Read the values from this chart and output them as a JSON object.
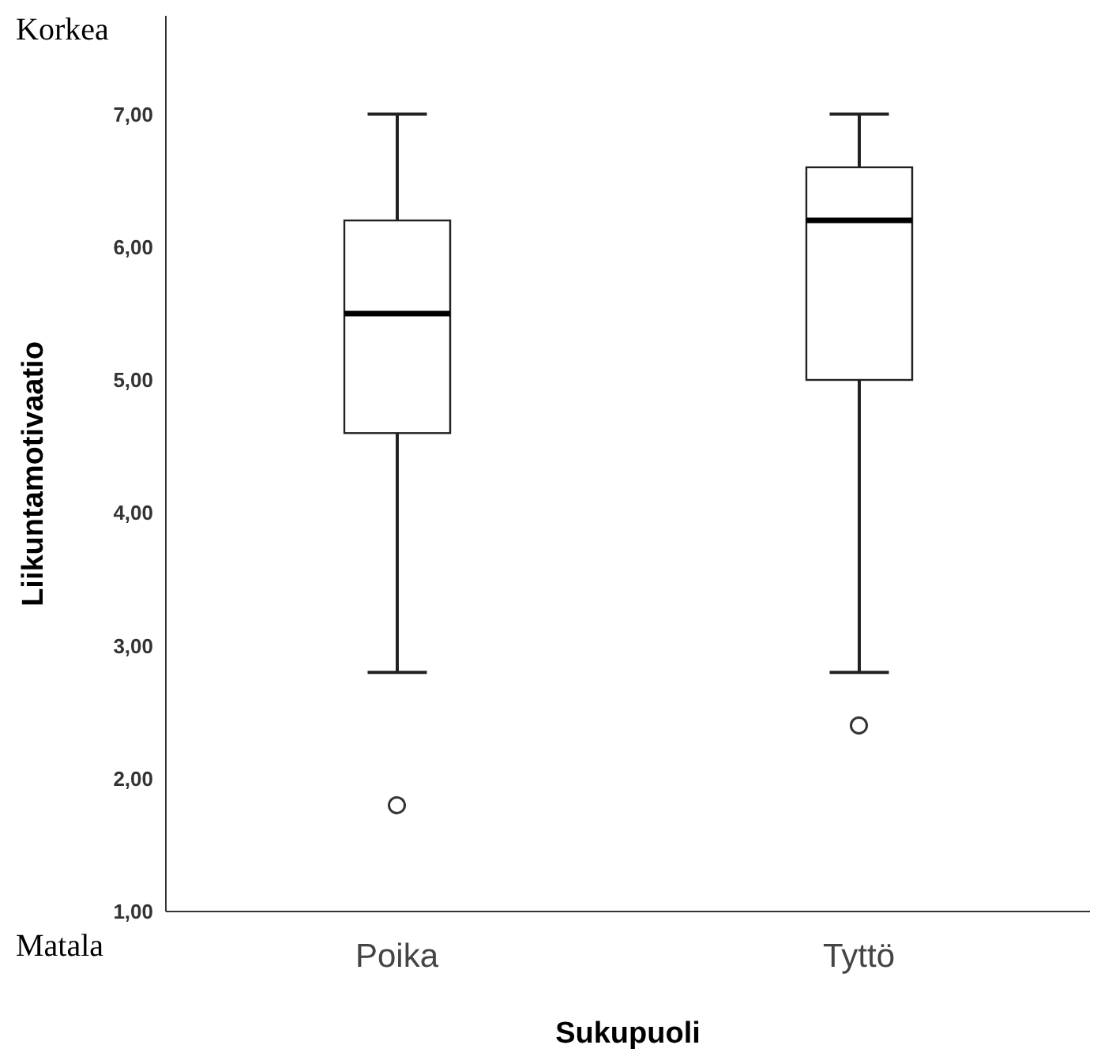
{
  "chart_data": {
    "type": "box",
    "categories": [
      "Poika",
      "Tyttö"
    ],
    "boxes": [
      {
        "low": 2.8,
        "q1": 4.6,
        "median": 5.5,
        "q3": 6.2,
        "high": 7,
        "outliers": [
          1.8
        ]
      },
      {
        "low": 2.8,
        "q1": 5.0,
        "median": 6.2,
        "q3": 6.6,
        "high": 7,
        "outliers": [
          2.4
        ]
      }
    ],
    "ylim": [
      1,
      7.74
    ],
    "yticks": [
      {
        "value": 1,
        "label": "1,00"
      },
      {
        "value": 2,
        "label": "2,00"
      },
      {
        "value": 3,
        "label": "3,00"
      },
      {
        "value": 4,
        "label": "4,00"
      },
      {
        "value": 5,
        "label": "5,00"
      },
      {
        "value": 6,
        "label": "6,00"
      },
      {
        "value": 7,
        "label": "7,00"
      }
    ],
    "xlabel": "Sukupuoli",
    "ylabel": "Liikuntamotivaatio",
    "annotations": [
      "Korkea",
      "Matala"
    ]
  }
}
